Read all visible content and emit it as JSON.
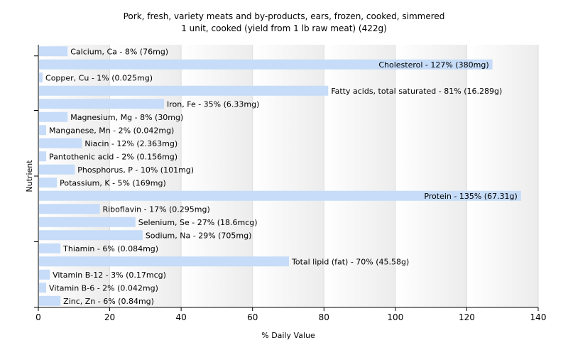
{
  "chart_data": {
    "type": "bar",
    "orientation": "horizontal",
    "title": "Pork, fresh, variety meats and by-products, ears, frozen, cooked, simmered",
    "subtitle": "1 unit, cooked (yield from 1 lb raw meat) (422g)",
    "xlabel": "% Daily Value",
    "ylabel": "Nutrient",
    "xlim": [
      0,
      140
    ],
    "xticks": [
      "0",
      "20",
      "40",
      "60",
      "80",
      "100",
      "120",
      "140"
    ],
    "grid": true,
    "bar_color": "#c6dcf8",
    "categories": [
      "Calcium, Ca",
      "Cholesterol",
      "Copper, Cu",
      "Fatty acids, total saturated",
      "Iron, Fe",
      "Magnesium, Mg",
      "Manganese, Mn",
      "Niacin",
      "Pantothenic acid",
      "Phosphorus, P",
      "Potassium, K",
      "Protein",
      "Riboflavin",
      "Selenium, Se",
      "Sodium, Na",
      "Thiamin",
      "Total lipid (fat)",
      "Vitamin B-12",
      "Vitamin B-6",
      "Zinc, Zn"
    ],
    "values": [
      8,
      127,
      1,
      81,
      35,
      8,
      2,
      12,
      2,
      10,
      5,
      135,
      17,
      27,
      29,
      6,
      70,
      3,
      2,
      6
    ],
    "labels": [
      "Calcium, Ca - 8% (76mg)",
      "Cholesterol - 127% (380mg)",
      "Copper, Cu - 1% (0.025mg)",
      "Fatty acids, total saturated - 81% (16.289g)",
      "Iron, Fe - 35% (6.33mg)",
      "Magnesium, Mg - 8% (30mg)",
      "Manganese, Mn - 2% (0.042mg)",
      "Niacin - 12% (2.363mg)",
      "Pantothenic acid - 2% (0.156mg)",
      "Phosphorus, P - 10% (101mg)",
      "Potassium, K - 5% (169mg)",
      "Protein - 135% (67.31g)",
      "Riboflavin - 17% (0.295mg)",
      "Selenium, Se - 27% (18.6mcg)",
      "Sodium, Na - 29% (705mg)",
      "Thiamin - 6% (0.084mg)",
      "Total lipid (fat) - 70% (45.58g)",
      "Vitamin B-12 - 3% (0.17mcg)",
      "Vitamin B-6 - 2% (0.042mg)",
      "Zinc, Zn - 6% (0.84mg)"
    ]
  }
}
